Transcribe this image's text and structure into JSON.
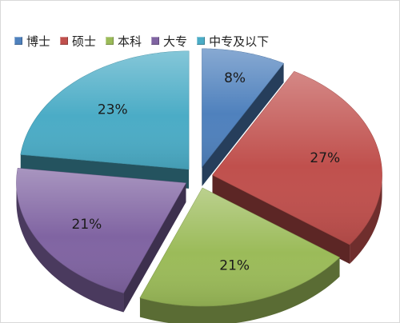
{
  "chart_data": {
    "type": "pie",
    "title": "",
    "categories": [
      "博士",
      "硕士",
      "本科",
      "大专",
      "中专及以下"
    ],
    "values": [
      8,
      27,
      21,
      21,
      23
    ],
    "labels": [
      "8%",
      "27%",
      "21%",
      "21%",
      "23%"
    ],
    "colors": [
      "#4f81bd",
      "#c0504d",
      "#9bbb59",
      "#8064a2",
      "#4bacc6"
    ],
    "exploded": true,
    "style": "3d",
    "legend_position": "top"
  }
}
